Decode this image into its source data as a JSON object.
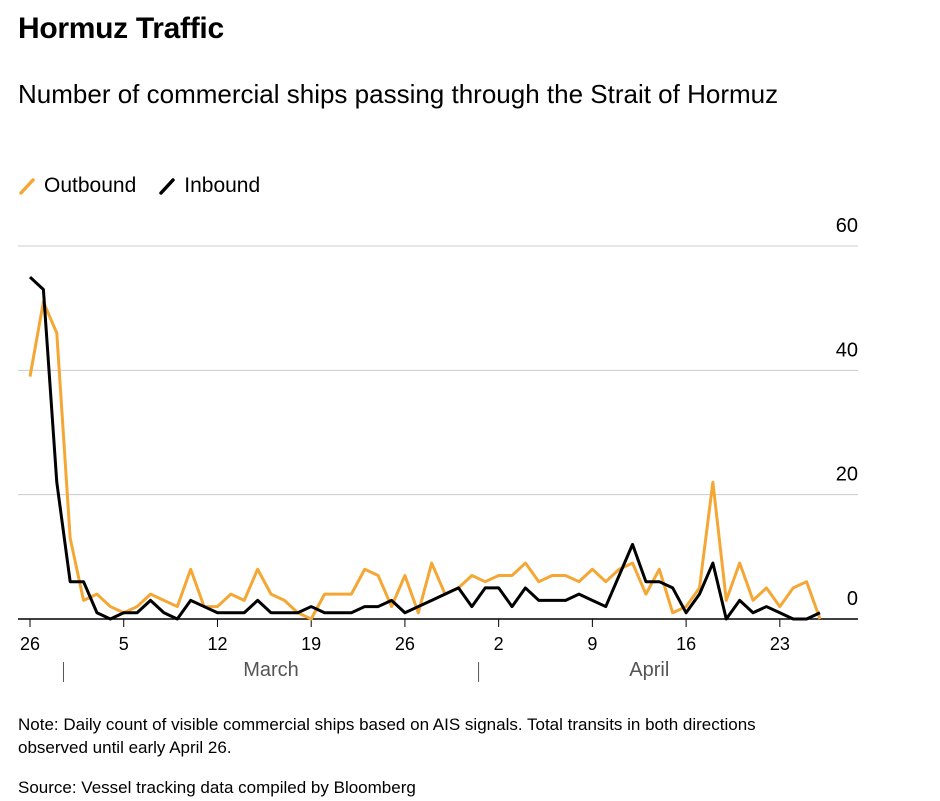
{
  "chart_data": {
    "type": "line",
    "title": "Hormuz Traffic",
    "subtitle": "Number of commercial ships passing through the Strait of Hormuz",
    "note": "Note: Daily count of visible commercial ships based on AIS signals. Total transits in both directions observed until early April 26.",
    "source": "Source: Vessel tracking data compiled by Bloomberg",
    "x": [
      "02-26",
      "02-27",
      "02-28",
      "03-01",
      "03-02",
      "03-03",
      "03-04",
      "03-05",
      "03-06",
      "03-07",
      "03-08",
      "03-09",
      "03-10",
      "03-11",
      "03-12",
      "03-13",
      "03-14",
      "03-15",
      "03-16",
      "03-17",
      "03-18",
      "03-19",
      "03-20",
      "03-21",
      "03-22",
      "03-23",
      "03-24",
      "03-25",
      "03-26",
      "03-27",
      "03-28",
      "03-29",
      "03-30",
      "03-31",
      "04-01",
      "04-02",
      "04-03",
      "04-04",
      "04-05",
      "04-06",
      "04-07",
      "04-08",
      "04-09",
      "04-10",
      "04-11",
      "04-12",
      "04-13",
      "04-14",
      "04-15",
      "04-16",
      "04-17",
      "04-18",
      "04-19",
      "04-20",
      "04-21",
      "04-22",
      "04-23",
      "04-24",
      "04-25",
      "04-26"
    ],
    "series": [
      {
        "name": "Outbound",
        "color": "#f5a735",
        "values": [
          39,
          51,
          46,
          13,
          3,
          4,
          2,
          1,
          2,
          4,
          3,
          2,
          8,
          2,
          2,
          4,
          3,
          8,
          4,
          3,
          1,
          0,
          4,
          4,
          4,
          8,
          7,
          2,
          7,
          1,
          9,
          4,
          5,
          7,
          6,
          7,
          7,
          9,
          6,
          7,
          7,
          6,
          8,
          6,
          8,
          9,
          4,
          8,
          1,
          2,
          5,
          22,
          3,
          9,
          3,
          5,
          2,
          5,
          6,
          0
        ]
      },
      {
        "name": "Inbound",
        "color": "#000000",
        "values": [
          55,
          53,
          22,
          6,
          6,
          1,
          0,
          1,
          1,
          3,
          1,
          0,
          3,
          2,
          1,
          1,
          1,
          3,
          1,
          1,
          1,
          2,
          1,
          1,
          1,
          2,
          2,
          3,
          1,
          2,
          3,
          4,
          5,
          2,
          5,
          5,
          2,
          5,
          3,
          3,
          3,
          4,
          3,
          2,
          7,
          12,
          6,
          6,
          5,
          1,
          4,
          9,
          0,
          3,
          1,
          2,
          1,
          0,
          0,
          1
        ]
      }
    ],
    "xticks": [
      {
        "value": "02-26",
        "label": "26"
      },
      {
        "value": "03-05",
        "label": "5"
      },
      {
        "value": "03-12",
        "label": "12"
      },
      {
        "value": "03-19",
        "label": "19"
      },
      {
        "value": "03-26",
        "label": "26"
      },
      {
        "value": "04-02",
        "label": "2"
      },
      {
        "value": "04-09",
        "label": "9"
      },
      {
        "value": "04-16",
        "label": "16"
      },
      {
        "value": "04-23",
        "label": "23"
      }
    ],
    "month_labels": [
      {
        "value": "03-01",
        "label": "March"
      },
      {
        "value": "04-01",
        "label": "April"
      }
    ],
    "ylim": [
      0,
      60
    ],
    "yticks": [
      0,
      20,
      40,
      60
    ],
    "grid": true,
    "legend": "top-left"
  }
}
